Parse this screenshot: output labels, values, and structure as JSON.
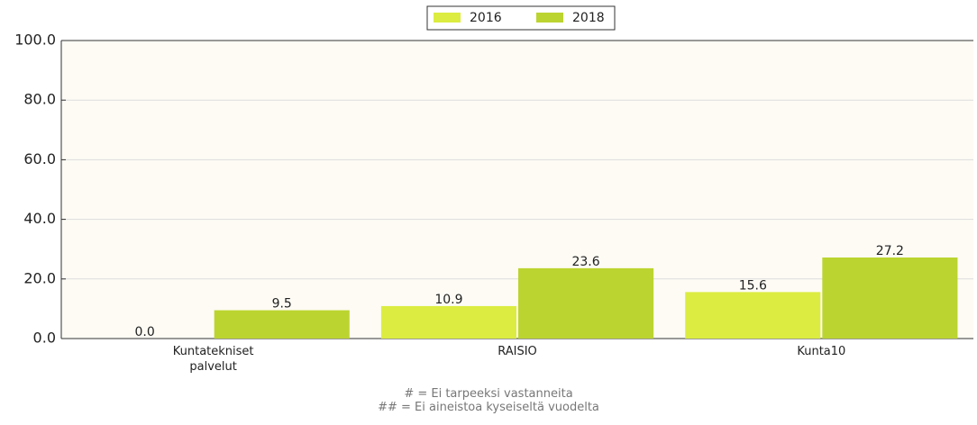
{
  "chart_data": {
    "type": "bar",
    "categories": [
      "Kuntatekniset\npalvelut",
      "RAISIO",
      "Kunta10"
    ],
    "series": [
      {
        "name": "2016",
        "color": "#dcec40",
        "values": [
          0,
          10.9,
          15.6
        ],
        "value_labels": [
          "0.0",
          "10.9",
          "15.6"
        ]
      },
      {
        "name": "2018",
        "color": "#bcd430",
        "values": [
          9.5,
          23.6,
          27.2
        ],
        "value_labels": [
          "9.5",
          "23.6",
          "27.2"
        ]
      }
    ],
    "ylim": [
      0,
      100
    ],
    "yticks": [
      {
        "value": 0,
        "label": "0.0"
      },
      {
        "value": 20,
        "label": "20.0"
      },
      {
        "value": 40,
        "label": "40.0"
      },
      {
        "value": 60,
        "label": "60.0"
      },
      {
        "value": 80,
        "label": "80.0"
      },
      {
        "value": 100,
        "label": "100.0"
      }
    ],
    "grid": true,
    "legend": "top",
    "notes": [
      "# = Ei tarpeeksi vastanneita",
      "## = Ei aineistoa kyseiseltä vuodelta"
    ]
  }
}
